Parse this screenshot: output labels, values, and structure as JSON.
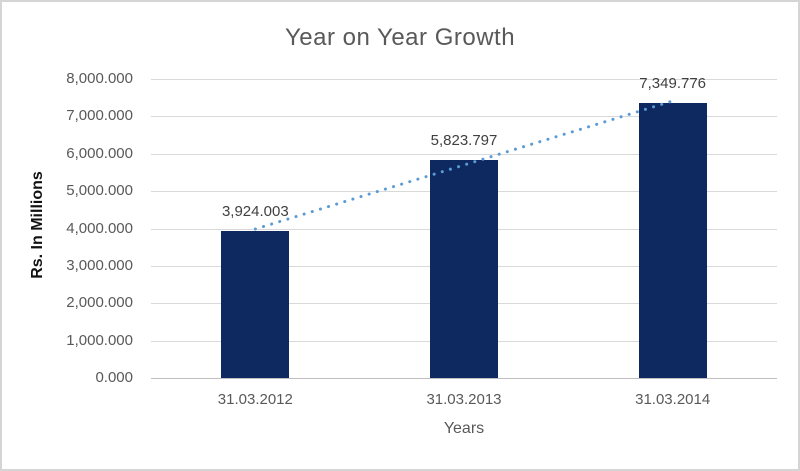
{
  "chart_data": {
    "type": "bar",
    "title": "Year on Year Growth",
    "xlabel": "Years",
    "ylabel": "Rs. In Millions",
    "categories": [
      "31.03.2012",
      "31.03.2013",
      "31.03.2014"
    ],
    "values": [
      3924.003,
      5823.797,
      7349.776
    ],
    "value_labels": [
      "3,924.003",
      "5,823.797",
      "7,349.776"
    ],
    "ylim": [
      0,
      8000
    ],
    "ytick_step": 1000,
    "ytick_labels": [
      "0.000",
      "1,000.000",
      "2,000.000",
      "3,000.000",
      "4,000.000",
      "5,000.000",
      "6,000.000",
      "7,000.000",
      "8,000.000"
    ],
    "grid": true,
    "legend": "none",
    "trendline": {
      "type": "linear",
      "style": "dotted"
    },
    "colors": {
      "bar": "#0e2960",
      "trendline": "#5b9bd5",
      "gridline": "#d9d9d9",
      "axis_line": "#bfbfbf",
      "title_text": "#595959",
      "tick_text": "#595959",
      "data_label_text": "#404040",
      "axis_title_text": "#111111",
      "frame_border": "#d5d5d5",
      "background": "#ffffff"
    }
  }
}
